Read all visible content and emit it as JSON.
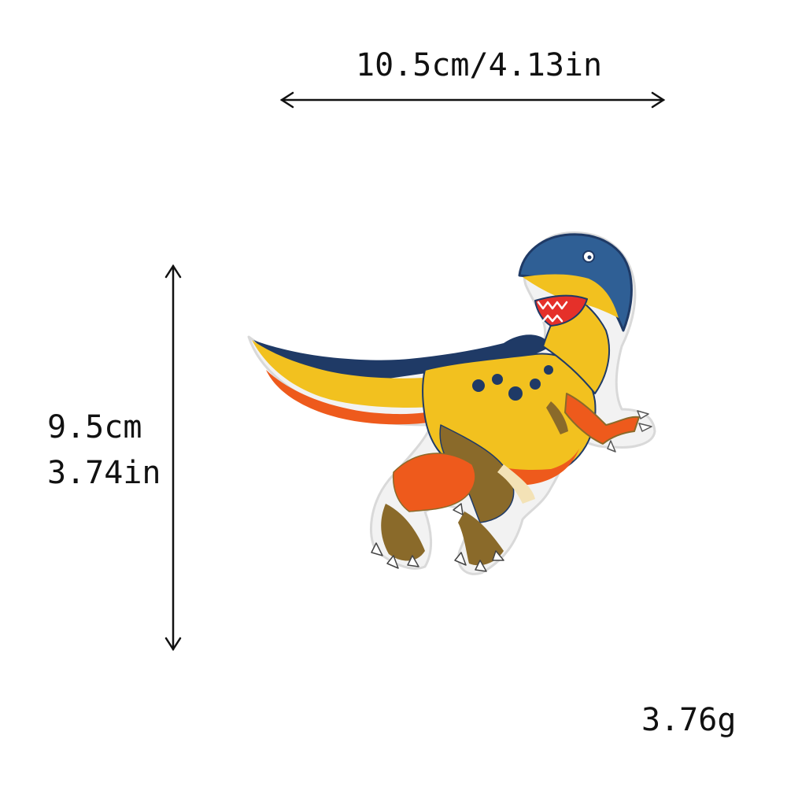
{
  "dimensions": {
    "width_label": "10.5cm/4.13in",
    "height_cm_label": "9.5cm",
    "height_in_label": "3.74in",
    "weight_label": "3.76g"
  },
  "product": {
    "name": "dinosaur-patch",
    "icon": "raptor-icon"
  },
  "colors": {
    "background": "#ffffff",
    "text": "#111111",
    "navy": "#1f3a66",
    "blue": "#2f5f95",
    "yellow": "#f2c11f",
    "orange": "#ee5a1c",
    "brown": "#8a6a2a",
    "cream": "#f3e2b6",
    "red": "#e5302a"
  }
}
